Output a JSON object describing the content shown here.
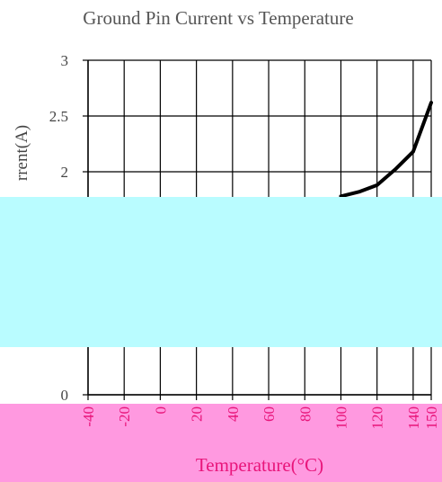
{
  "chart_data": {
    "type": "line",
    "title": "Ground Pin Current vs Temperature",
    "xlabel": "Temperature(°C)",
    "ylabel": "rrent(A)",
    "x_ticks": [
      "-40",
      "-20",
      "0",
      "20",
      "40",
      "60",
      "80",
      "100",
      "120",
      "140",
      "150"
    ],
    "y_ticks": [
      "0",
      "2",
      "2.5",
      "3"
    ],
    "xlim": [
      -40,
      150
    ],
    "ylim": [
      0,
      3
    ],
    "grid": true,
    "series": [
      {
        "color": "#000000",
        "x": [
          100,
          110,
          120,
          130,
          140,
          150
        ],
        "y": [
          1.78,
          1.82,
          1.88,
          2.02,
          2.18,
          2.62
        ]
      }
    ]
  },
  "overlays": {
    "top_block_color": "#b9fcff",
    "bottom_block_color": "#ff99e0"
  }
}
